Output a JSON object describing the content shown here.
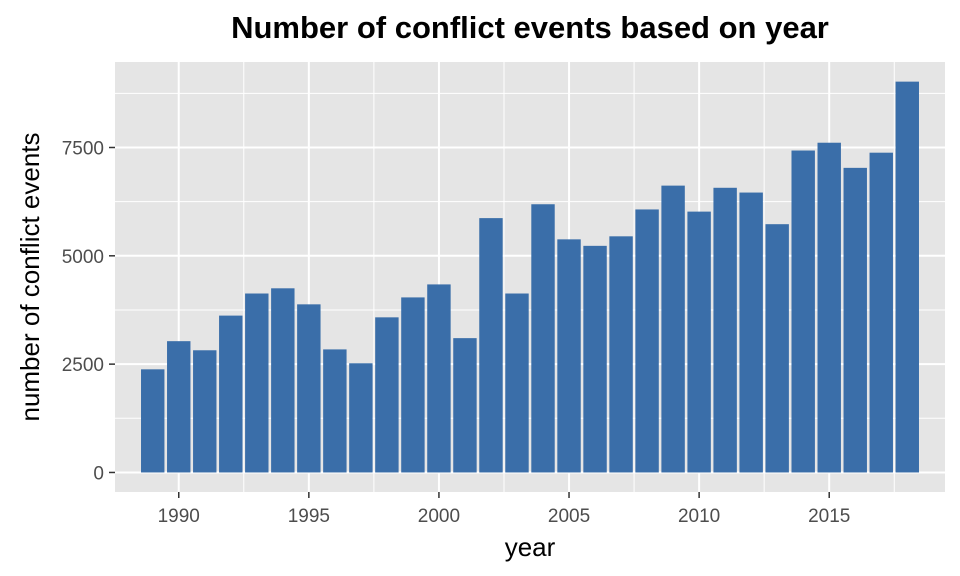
{
  "chart_data": {
    "type": "bar",
    "title": "Number of conflict events based on year",
    "xlabel": "year",
    "ylabel": "number of conflict events",
    "x": [
      1989,
      1990,
      1991,
      1992,
      1993,
      1994,
      1995,
      1996,
      1997,
      1998,
      1999,
      2000,
      2001,
      2002,
      2003,
      2004,
      2005,
      2006,
      2007,
      2008,
      2009,
      2010,
      2011,
      2012,
      2013,
      2014,
      2015,
      2016,
      2017,
      2018
    ],
    "values": [
      2380,
      3030,
      2820,
      3620,
      4130,
      4250,
      3880,
      2840,
      2520,
      3580,
      4040,
      4340,
      3100,
      5870,
      4130,
      6190,
      5380,
      5230,
      5450,
      6070,
      6620,
      6020,
      6570,
      6460,
      5730,
      7430,
      7610,
      7030,
      7380,
      9020
    ],
    "xticks": [
      1990,
      1995,
      2000,
      2005,
      2010,
      2015
    ],
    "xtick_labels": [
      "1990",
      "1995",
      "2000",
      "2005",
      "2010",
      "2015"
    ],
    "yticks": [
      0,
      2500,
      5000,
      7500
    ],
    "ytick_labels": [
      "0",
      "2500",
      "5000",
      "7500"
    ],
    "xlim": [
      1987.55,
      2019.45
    ],
    "ylim": [
      -451,
      9473
    ],
    "grid": true,
    "legend": "none",
    "colors": {
      "bar": "#3A6EA9",
      "panel_background": "#E5E5E5",
      "grid_major": "#FFFFFF",
      "tick_text": "#4D4D4D"
    }
  }
}
